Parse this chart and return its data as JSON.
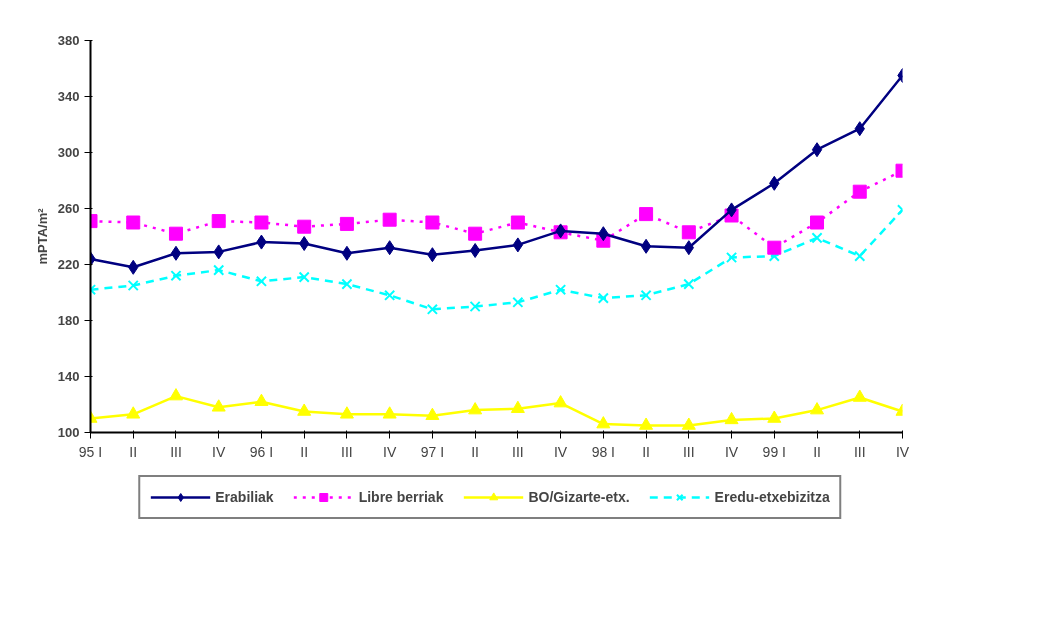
{
  "chart_data": {
    "type": "line",
    "ylabel": "mPTA/m²",
    "categories": [
      "95 I",
      "II",
      "III",
      "IV",
      "96 I",
      "II",
      "III",
      "IV",
      "97 I",
      "II",
      "III",
      "IV",
      "98 I",
      "II",
      "III",
      "IV",
      "99 I",
      "II",
      "III",
      "IV"
    ],
    "ylim": [
      100,
      380
    ],
    "yticks": [
      100,
      140,
      180,
      220,
      260,
      300,
      340,
      380
    ],
    "grid": false,
    "legend": "bottom",
    "series": [
      {
        "name": "Erabiliak",
        "color": "#000080",
        "marker": "diamond",
        "line_style": "solid",
        "values": [
          224,
          218,
          228,
          229,
          236,
          235,
          228,
          232,
          227,
          230,
          234,
          244,
          242,
          233,
          232,
          259,
          278,
          302,
          317,
          355
        ]
      },
      {
        "name": "Libre berriak",
        "color": "#ff00ff",
        "marker": "square",
        "line_style": "dotted",
        "values": [
          251,
          250,
          242,
          251,
          250,
          247,
          249,
          252,
          250,
          242,
          250,
          243,
          237,
          256,
          243,
          255,
          232,
          250,
          272,
          287
        ]
      },
      {
        "name": "BO/Gizarte-etx.",
        "color": "#ffff00",
        "marker": "triangle",
        "line_style": "solid",
        "values": [
          110,
          113,
          126,
          118,
          122,
          115,
          113,
          113,
          112,
          116,
          117,
          121,
          106,
          105,
          105,
          109,
          110,
          116,
          125,
          115
        ]
      },
      {
        "name": "Eredu-etxebizitza",
        "color": "#00ffff",
        "marker": "cross",
        "line_style": "dashed",
        "values": [
          202,
          205,
          212,
          216,
          208,
          211,
          206,
          198,
          188,
          190,
          193,
          202,
          196,
          198,
          206,
          225,
          226,
          239,
          226,
          259
        ]
      }
    ]
  }
}
